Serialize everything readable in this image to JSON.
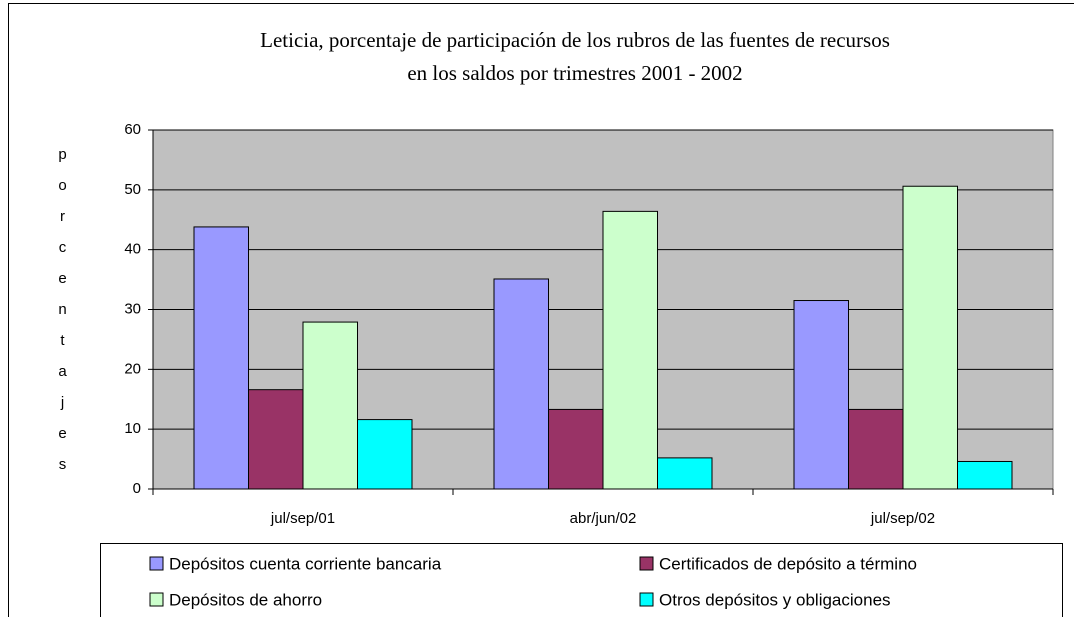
{
  "chart_data": {
    "type": "bar",
    "title": [
      "Leticia, porcentaje de participación de los rubros de las fuentes de recursos",
      "en los saldos por trimestres 2001 - 2002"
    ],
    "y_label": "porcentajes",
    "categories": [
      "jul/sep/01",
      "abr/jun/02",
      "jul/sep/02"
    ],
    "series": [
      {
        "name": "Depósitos cuenta corriente bancaria",
        "color": "#9999ff",
        "values": [
          43.8,
          35.1,
          31.5
        ]
      },
      {
        "name": "Certificados de depósito a término",
        "color": "#993366",
        "values": [
          16.6,
          13.3,
          13.3
        ]
      },
      {
        "name": "Depósitos de ahorro",
        "color": "#ccffcc",
        "values": [
          27.9,
          46.4,
          50.6
        ]
      },
      {
        "name": "Otros depósitos y obligaciones",
        "color": "#00ffff",
        "values": [
          11.6,
          5.2,
          4.6
        ]
      }
    ],
    "ylim": [
      0,
      60
    ],
    "yticks": [
      0,
      10,
      20,
      30,
      40,
      50,
      60
    ],
    "grid": true,
    "legend": "bottom",
    "plot_background": "#c0c0c0"
  }
}
